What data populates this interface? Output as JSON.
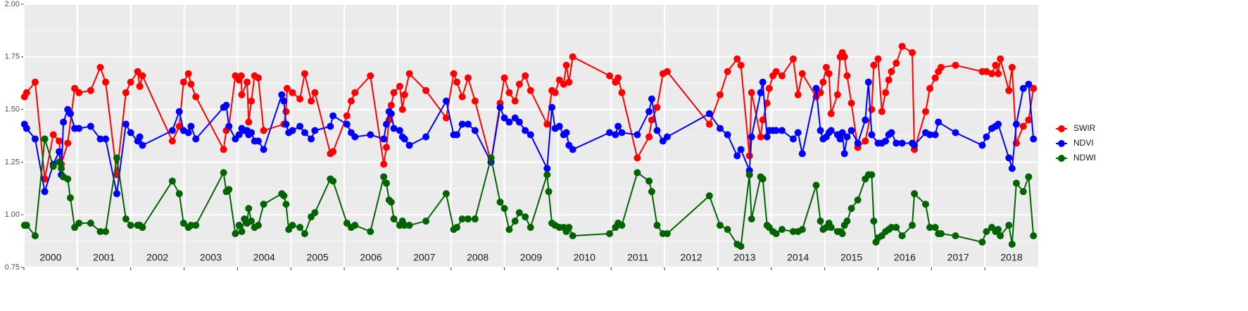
{
  "chart_data": {
    "type": "line",
    "xlim": [
      2000,
      2019
    ],
    "xticks": [
      2000,
      2001,
      2002,
      2003,
      2004,
      2005,
      2006,
      2007,
      2008,
      2009,
      2010,
      2011,
      2012,
      2013,
      2014,
      2015,
      2016,
      2017,
      2018
    ],
    "ylim": [
      0.75,
      2.0
    ],
    "yticks": [
      {
        "value": 0.75,
        "label": "0.75"
      },
      {
        "value": 1.0,
        "label": "1.00"
      },
      {
        "value": 1.25,
        "label": "1.25"
      },
      {
        "value": 1.5,
        "label": "1.50"
      },
      {
        "value": 1.75,
        "label": "1.75"
      },
      {
        "value": 2.0,
        "label": "2.00"
      }
    ],
    "grid": true,
    "legend": "right",
    "series": [
      {
        "name": "SWIR",
        "color": "#ff0000",
        "x": [
          2000.01,
          2000.05,
          2000.21,
          2000.39,
          2000.55,
          2000.66,
          2000.7,
          2000.82,
          2000.95,
          2001.03,
          2001.25,
          2001.43,
          2001.53,
          2001.74,
          2001.91,
          2002.0,
          2002.13,
          2002.17,
          2002.22,
          2002.78,
          2002.91,
          2002.99,
          2003.08,
          2003.13,
          2003.22,
          2003.74,
          2003.79,
          2003.84,
          2003.96,
          2004.03,
          2004.07,
          2004.08,
          2004.18,
          2004.21,
          2004.26,
          2004.32,
          2004.39,
          2004.49,
          2004.87,
          2004.91,
          2004.93,
          2005.03,
          2005.17,
          2005.26,
          2005.38,
          2005.45,
          2005.74,
          2005.79,
          2006.05,
          2006.13,
          2006.2,
          2006.49,
          2006.74,
          2006.79,
          2006.84,
          2006.88,
          2006.93,
          2007.04,
          2007.09,
          2007.13,
          2007.22,
          2007.53,
          2007.91,
          2008.05,
          2008.11,
          2008.21,
          2008.32,
          2008.45,
          2008.75,
          2008.92,
          2009.0,
          2009.09,
          2009.2,
          2009.28,
          2009.39,
          2009.49,
          2009.8,
          2009.89,
          2009.95,
          2010.03,
          2010.11,
          2010.16,
          2010.21,
          2010.28,
          2010.97,
          2011.08,
          2011.13,
          2011.2,
          2011.49,
          2011.71,
          2011.76,
          2011.86,
          2011.97,
          2012.05,
          2012.84,
          2013.04,
          2013.18,
          2013.36,
          2013.43,
          2013.59,
          2013.63,
          2013.8,
          2013.84,
          2013.92,
          2013.96,
          2014.03,
          2014.09,
          2014.2,
          2014.41,
          2014.5,
          2014.58,
          2014.84,
          2014.92,
          2014.97,
          2015.03,
          2015.08,
          2015.12,
          2015.24,
          2015.29,
          2015.33,
          2015.37,
          2015.42,
          2015.5,
          2015.62,
          2015.76,
          2015.88,
          2015.92,
          2016.0,
          2016.07,
          2016.14,
          2016.2,
          2016.25,
          2016.34,
          2016.45,
          2016.64,
          2016.68,
          2016.89,
          2016.97,
          2017.07,
          2017.13,
          2017.18,
          2017.45,
          2017.95,
          2018.03,
          2018.13,
          2018.2,
          2018.25,
          2018.29,
          2018.45,
          2018.51,
          2018.59,
          2018.72,
          2018.82,
          2018.91
        ],
        "values": [
          1.56,
          1.58,
          1.63,
          1.17,
          1.38,
          1.35,
          1.24,
          1.34,
          1.6,
          1.58,
          1.59,
          1.7,
          1.63,
          1.19,
          1.58,
          1.63,
          1.68,
          1.61,
          1.66,
          1.35,
          1.42,
          1.63,
          1.67,
          1.62,
          1.56,
          1.31,
          1.4,
          1.42,
          1.66,
          1.64,
          1.66,
          1.57,
          1.63,
          1.44,
          1.54,
          1.66,
          1.65,
          1.4,
          1.43,
          1.49,
          1.6,
          1.58,
          1.55,
          1.67,
          1.54,
          1.58,
          1.29,
          1.3,
          1.47,
          1.54,
          1.58,
          1.66,
          1.24,
          1.32,
          1.45,
          1.52,
          1.58,
          1.61,
          1.5,
          1.57,
          1.67,
          1.59,
          1.46,
          1.67,
          1.63,
          1.56,
          1.65,
          1.54,
          1.25,
          1.53,
          1.65,
          1.58,
          1.54,
          1.62,
          1.66,
          1.59,
          1.43,
          1.59,
          1.58,
          1.64,
          1.62,
          1.71,
          1.63,
          1.75,
          1.66,
          1.63,
          1.65,
          1.58,
          1.27,
          1.37,
          1.45,
          1.51,
          1.67,
          1.68,
          1.43,
          1.57,
          1.68,
          1.74,
          1.71,
          1.28,
          1.58,
          1.37,
          1.45,
          1.53,
          1.6,
          1.66,
          1.68,
          1.66,
          1.74,
          1.57,
          1.67,
          1.56,
          1.58,
          1.63,
          1.7,
          1.67,
          1.48,
          1.57,
          1.75,
          1.77,
          1.75,
          1.66,
          1.53,
          1.32,
          1.35,
          1.5,
          1.71,
          1.74,
          1.49,
          1.58,
          1.64,
          1.68,
          1.72,
          1.8,
          1.77,
          1.31,
          1.49,
          1.6,
          1.65,
          1.68,
          1.7,
          1.71,
          1.68,
          1.68,
          1.67,
          1.71,
          1.67,
          1.74,
          1.59,
          1.7,
          1.34,
          1.42,
          1.45,
          1.6
        ]
      },
      {
        "name": "NDVI",
        "color": "#0000ff",
        "x": [
          2000.01,
          2000.05,
          2000.21,
          2000.39,
          2000.55,
          2000.66,
          2000.7,
          2000.74,
          2000.82,
          2000.87,
          2000.95,
          2001.03,
          2001.25,
          2001.43,
          2001.53,
          2001.74,
          2001.91,
          2002.0,
          2002.13,
          2002.17,
          2002.22,
          2002.78,
          2002.91,
          2002.99,
          2003.08,
          2003.13,
          2003.22,
          2003.74,
          2003.79,
          2003.84,
          2003.96,
          2004.03,
          2004.08,
          2004.13,
          2004.18,
          2004.21,
          2004.26,
          2004.32,
          2004.39,
          2004.49,
          2004.83,
          2004.87,
          2004.91,
          2004.96,
          2005.03,
          2005.17,
          2005.26,
          2005.38,
          2005.45,
          2005.74,
          2005.79,
          2006.05,
          2006.13,
          2006.2,
          2006.49,
          2006.74,
          2006.79,
          2006.84,
          2006.88,
          2006.93,
          2007.04,
          2007.09,
          2007.13,
          2007.22,
          2007.53,
          2007.91,
          2008.05,
          2008.11,
          2008.21,
          2008.32,
          2008.45,
          2008.75,
          2008.92,
          2009.0,
          2009.09,
          2009.2,
          2009.28,
          2009.39,
          2009.49,
          2009.8,
          2009.89,
          2009.95,
          2010.03,
          2010.11,
          2010.16,
          2010.21,
          2010.28,
          2010.97,
          2011.08,
          2011.13,
          2011.2,
          2011.49,
          2011.71,
          2011.76,
          2011.86,
          2011.97,
          2012.05,
          2012.84,
          2013.04,
          2013.18,
          2013.36,
          2013.43,
          2013.59,
          2013.63,
          2013.8,
          2013.84,
          2013.92,
          2013.96,
          2014.03,
          2014.09,
          2014.2,
          2014.41,
          2014.5,
          2014.58,
          2014.84,
          2014.92,
          2014.97,
          2015.03,
          2015.08,
          2015.12,
          2015.24,
          2015.29,
          2015.33,
          2015.37,
          2015.42,
          2015.5,
          2015.62,
          2015.76,
          2015.82,
          2015.88,
          2016.0,
          2016.07,
          2016.14,
          2016.2,
          2016.25,
          2016.34,
          2016.45,
          2016.64,
          2016.68,
          2016.89,
          2016.97,
          2017.07,
          2017.13,
          2017.45,
          2017.95,
          2018.03,
          2018.13,
          2018.2,
          2018.25,
          2018.45,
          2018.51,
          2018.59,
          2018.72,
          2018.82,
          2018.91
        ],
        "values": [
          1.43,
          1.41,
          1.36,
          1.11,
          1.24,
          1.3,
          1.19,
          1.44,
          1.5,
          1.48,
          1.41,
          1.41,
          1.42,
          1.36,
          1.36,
          1.1,
          1.43,
          1.39,
          1.35,
          1.37,
          1.33,
          1.4,
          1.49,
          1.4,
          1.39,
          1.42,
          1.36,
          1.51,
          1.52,
          1.42,
          1.36,
          1.38,
          1.41,
          1.4,
          1.4,
          1.38,
          1.39,
          1.35,
          1.35,
          1.31,
          1.57,
          1.54,
          1.43,
          1.39,
          1.4,
          1.42,
          1.39,
          1.36,
          1.4,
          1.42,
          1.47,
          1.43,
          1.39,
          1.37,
          1.38,
          1.36,
          1.43,
          1.49,
          1.48,
          1.41,
          1.4,
          1.37,
          1.36,
          1.33,
          1.37,
          1.54,
          1.38,
          1.38,
          1.43,
          1.43,
          1.4,
          1.25,
          1.51,
          1.46,
          1.44,
          1.46,
          1.44,
          1.4,
          1.38,
          1.22,
          1.51,
          1.41,
          1.42,
          1.38,
          1.39,
          1.33,
          1.31,
          1.39,
          1.38,
          1.42,
          1.39,
          1.38,
          1.49,
          1.55,
          1.4,
          1.35,
          1.37,
          1.48,
          1.41,
          1.38,
          1.28,
          1.31,
          1.21,
          1.37,
          1.58,
          1.63,
          1.37,
          1.4,
          1.4,
          1.4,
          1.4,
          1.36,
          1.39,
          1.29,
          1.6,
          1.4,
          1.36,
          1.37,
          1.39,
          1.4,
          1.38,
          1.36,
          1.39,
          1.29,
          1.37,
          1.4,
          1.34,
          1.45,
          1.63,
          1.38,
          1.34,
          1.34,
          1.35,
          1.38,
          1.39,
          1.34,
          1.34,
          1.34,
          1.33,
          1.39,
          1.38,
          1.38,
          1.44,
          1.39,
          1.33,
          1.37,
          1.41,
          1.42,
          1.43,
          1.27,
          1.22,
          1.43,
          1.6,
          1.62,
          1.36
        ]
      },
      {
        "name": "NDWI",
        "color": "#006400",
        "x": [
          2000.01,
          2000.05,
          2000.21,
          2000.39,
          2000.55,
          2000.66,
          2000.7,
          2000.74,
          2000.82,
          2000.87,
          2000.95,
          2001.03,
          2001.25,
          2001.43,
          2001.53,
          2001.74,
          2001.91,
          2002.0,
          2002.13,
          2002.17,
          2002.22,
          2002.78,
          2002.91,
          2002.99,
          2003.08,
          2003.13,
          2003.22,
          2003.74,
          2003.79,
          2003.84,
          2003.96,
          2004.03,
          2004.08,
          2004.13,
          2004.18,
          2004.21,
          2004.26,
          2004.32,
          2004.39,
          2004.49,
          2004.83,
          2004.87,
          2004.91,
          2004.96,
          2005.03,
          2005.17,
          2005.26,
          2005.38,
          2005.45,
          2005.74,
          2005.79,
          2006.05,
          2006.13,
          2006.2,
          2006.49,
          2006.74,
          2006.79,
          2006.84,
          2006.88,
          2006.93,
          2007.04,
          2007.09,
          2007.13,
          2007.22,
          2007.53,
          2007.91,
          2008.05,
          2008.11,
          2008.21,
          2008.32,
          2008.45,
          2008.75,
          2008.92,
          2009.0,
          2009.09,
          2009.2,
          2009.28,
          2009.39,
          2009.49,
          2009.8,
          2009.83,
          2009.89,
          2009.95,
          2010.03,
          2010.11,
          2010.16,
          2010.21,
          2010.28,
          2010.97,
          2011.08,
          2011.13,
          2011.2,
          2011.49,
          2011.71,
          2011.76,
          2011.86,
          2011.97,
          2012.05,
          2012.84,
          2013.04,
          2013.18,
          2013.36,
          2013.43,
          2013.59,
          2013.63,
          2013.8,
          2013.84,
          2013.92,
          2013.96,
          2014.03,
          2014.09,
          2014.2,
          2014.41,
          2014.5,
          2014.58,
          2014.84,
          2014.92,
          2014.97,
          2015.03,
          2015.08,
          2015.12,
          2015.24,
          2015.29,
          2015.33,
          2015.37,
          2015.42,
          2015.5,
          2015.62,
          2015.76,
          2015.82,
          2015.88,
          2015.92,
          2015.96,
          2016.0,
          2016.07,
          2016.14,
          2016.2,
          2016.25,
          2016.34,
          2016.45,
          2016.64,
          2016.68,
          2016.89,
          2016.97,
          2017.07,
          2017.13,
          2017.18,
          2017.45,
          2017.95,
          2018.03,
          2018.13,
          2018.2,
          2018.25,
          2018.29,
          2018.45,
          2018.51,
          2018.59,
          2018.72,
          2018.82,
          2018.91
        ],
        "values": [
          0.95,
          0.95,
          0.9,
          1.36,
          1.23,
          1.25,
          1.22,
          1.18,
          1.17,
          1.08,
          0.94,
          0.96,
          0.96,
          0.92,
          0.92,
          1.27,
          0.98,
          0.95,
          0.95,
          0.95,
          0.94,
          1.16,
          1.1,
          0.96,
          0.94,
          0.95,
          0.95,
          1.2,
          1.11,
          1.12,
          0.91,
          0.95,
          0.92,
          0.98,
          0.96,
          1.03,
          0.97,
          0.94,
          0.95,
          1.05,
          1.1,
          1.09,
          1.05,
          0.93,
          0.95,
          0.94,
          0.91,
          0.99,
          1.01,
          1.17,
          1.16,
          0.96,
          0.94,
          0.95,
          0.92,
          1.18,
          1.15,
          1.07,
          1.06,
          0.98,
          0.95,
          0.97,
          0.95,
          0.95,
          0.97,
          1.1,
          0.93,
          0.94,
          0.98,
          0.98,
          0.98,
          1.27,
          1.06,
          1.03,
          0.93,
          0.97,
          1.01,
          0.99,
          0.94,
          1.19,
          1.11,
          0.96,
          0.95,
          0.94,
          0.94,
          0.92,
          0.94,
          0.9,
          0.91,
          0.94,
          0.96,
          0.95,
          1.2,
          1.16,
          1.11,
          0.95,
          0.91,
          0.91,
          1.09,
          0.95,
          0.93,
          0.86,
          0.85,
          1.19,
          0.98,
          1.18,
          1.17,
          0.95,
          0.94,
          0.92,
          0.91,
          0.93,
          0.92,
          0.92,
          0.93,
          1.14,
          0.97,
          0.93,
          0.94,
          0.96,
          0.94,
          0.92,
          0.92,
          0.91,
          0.95,
          0.97,
          1.03,
          1.07,
          1.17,
          1.19,
          1.19,
          0.97,
          0.87,
          0.89,
          0.9,
          0.92,
          0.93,
          0.94,
          0.94,
          0.9,
          0.95,
          1.1,
          1.05,
          0.94,
          0.94,
          0.91,
          0.91,
          0.9,
          0.87,
          0.92,
          0.94,
          0.92,
          0.93,
          0.9,
          0.95,
          0.86,
          1.15,
          1.11,
          1.18,
          0.9
        ]
      }
    ]
  }
}
